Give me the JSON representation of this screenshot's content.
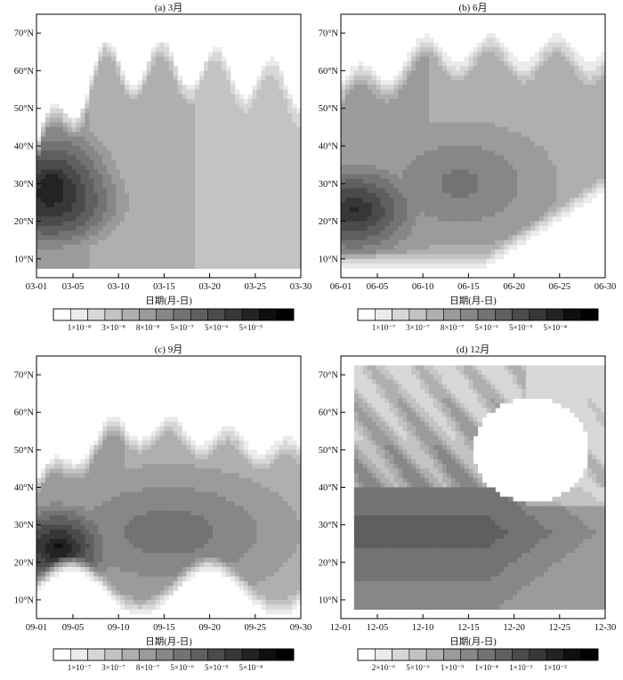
{
  "chart_data": [
    {
      "type": "heatmap",
      "title": "(a) 3月",
      "xlabel": "日期(月-日)",
      "x_ticks": [
        "03-01",
        "03-05",
        "03-10",
        "03-15",
        "03-20",
        "03-25",
        "03-30"
      ],
      "y_ticks": [
        "10°N",
        "20°N",
        "30°N",
        "40°N",
        "50°N",
        "60°N",
        "70°N"
      ],
      "colorbar_labels": [
        "1×10⁻⁸",
        "3×10⁻⁸",
        "8×10⁻⁸",
        "5×10⁻⁷",
        "5×10⁻⁶",
        "5×10⁻⁵"
      ],
      "peak_region": "30°N near 03-01 to 03-05"
    },
    {
      "type": "heatmap",
      "title": "(b) 6月",
      "xlabel": "日期(月-日)",
      "x_ticks": [
        "06-01",
        "06-05",
        "06-10",
        "06-15",
        "06-20",
        "06-25",
        "06-30"
      ],
      "y_ticks": [
        "10°N",
        "20°N",
        "30°N",
        "40°N",
        "50°N",
        "60°N",
        "70°N"
      ],
      "colorbar_labels": [
        "1×10⁻⁷",
        "3×10⁻⁷",
        "8×10⁻⁷",
        "5×10⁻⁶",
        "5×10⁻⁵",
        "5×10⁻⁴"
      ],
      "peak_region": "20–25°N near 06-01 to 06-05"
    },
    {
      "type": "heatmap",
      "title": "(c) 9月",
      "xlabel": "日期(月-日)",
      "x_ticks": [
        "09-01",
        "09-05",
        "09-10",
        "09-15",
        "09-20",
        "09-25",
        "09-30"
      ],
      "y_ticks": [
        "10°N",
        "20°N",
        "30°N",
        "40°N",
        "50°N",
        "60°N",
        "70°N"
      ],
      "colorbar_labels": [
        "1×10⁻⁷",
        "3×10⁻⁷",
        "8×10⁻⁷",
        "5×10⁻⁶",
        "5×10⁻⁵",
        "5×10⁻⁴"
      ],
      "peak_region": "25°N near 09-02 to 09-05"
    },
    {
      "type": "heatmap",
      "title": "(d) 12月",
      "xlabel": "日期(月-日)",
      "x_ticks": [
        "12-01",
        "12-05",
        "12-10",
        "12-15",
        "12-20",
        "12-25",
        "12-30"
      ],
      "y_ticks": [
        "10°N",
        "20°N",
        "30°N",
        "40°N",
        "50°N",
        "60°N",
        "70°N"
      ],
      "colorbar_labels": [
        "2×10⁻⁶",
        "5×10⁻⁶",
        "1×10⁻⁵",
        "1×10⁻⁴",
        "1×10⁻³",
        "1×10⁻²"
      ],
      "peak_region": "20–30°N near 12-01 to 12-10"
    }
  ],
  "colors": {
    "scale": [
      "#ffffff",
      "#ebebeb",
      "#d7d7d7",
      "#c3c3c3",
      "#afafaf",
      "#9b9b9b",
      "#878787",
      "#737373",
      "#5f5f5f",
      "#4b4b4b",
      "#373737",
      "#232323",
      "#0f0f0f",
      "#000000"
    ]
  }
}
